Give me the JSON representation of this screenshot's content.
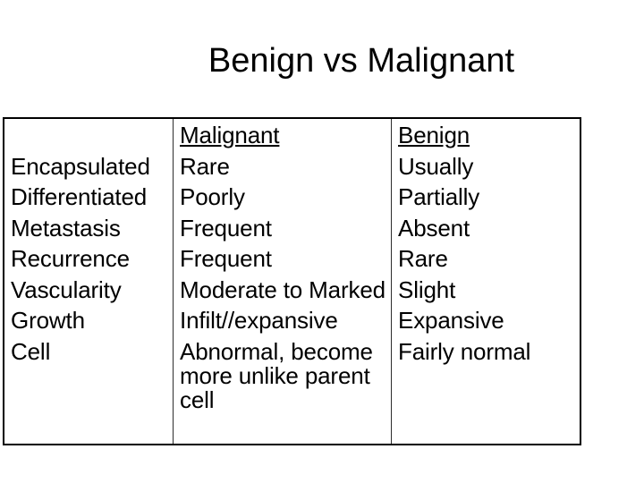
{
  "title": "Benign vs Malignant",
  "table": {
    "columns": [
      {
        "id": "feature",
        "header": "",
        "items": [
          "Encapsulated",
          "Differentiated",
          "Metastasis",
          "Recurrence",
          "Vascularity",
          "Growth",
          "Cell"
        ]
      },
      {
        "id": "malignant",
        "header": "Malignant",
        "items": [
          "Rare",
          "Poorly",
          "Frequent",
          "Frequent",
          "Moderate to Marked",
          "Infilt//expansive",
          "Abnormal, become more unlike parent cell"
        ]
      },
      {
        "id": "benign",
        "header": "Benign",
        "items": [
          "Usually",
          "Partially",
          "Absent",
          "Rare",
          "Slight",
          "Expansive",
          "Fairly normal"
        ]
      }
    ]
  },
  "colors": {
    "background": "#ffffff",
    "text": "#000000",
    "table_border": "#000000",
    "column_divider": "#2d2d2d"
  }
}
